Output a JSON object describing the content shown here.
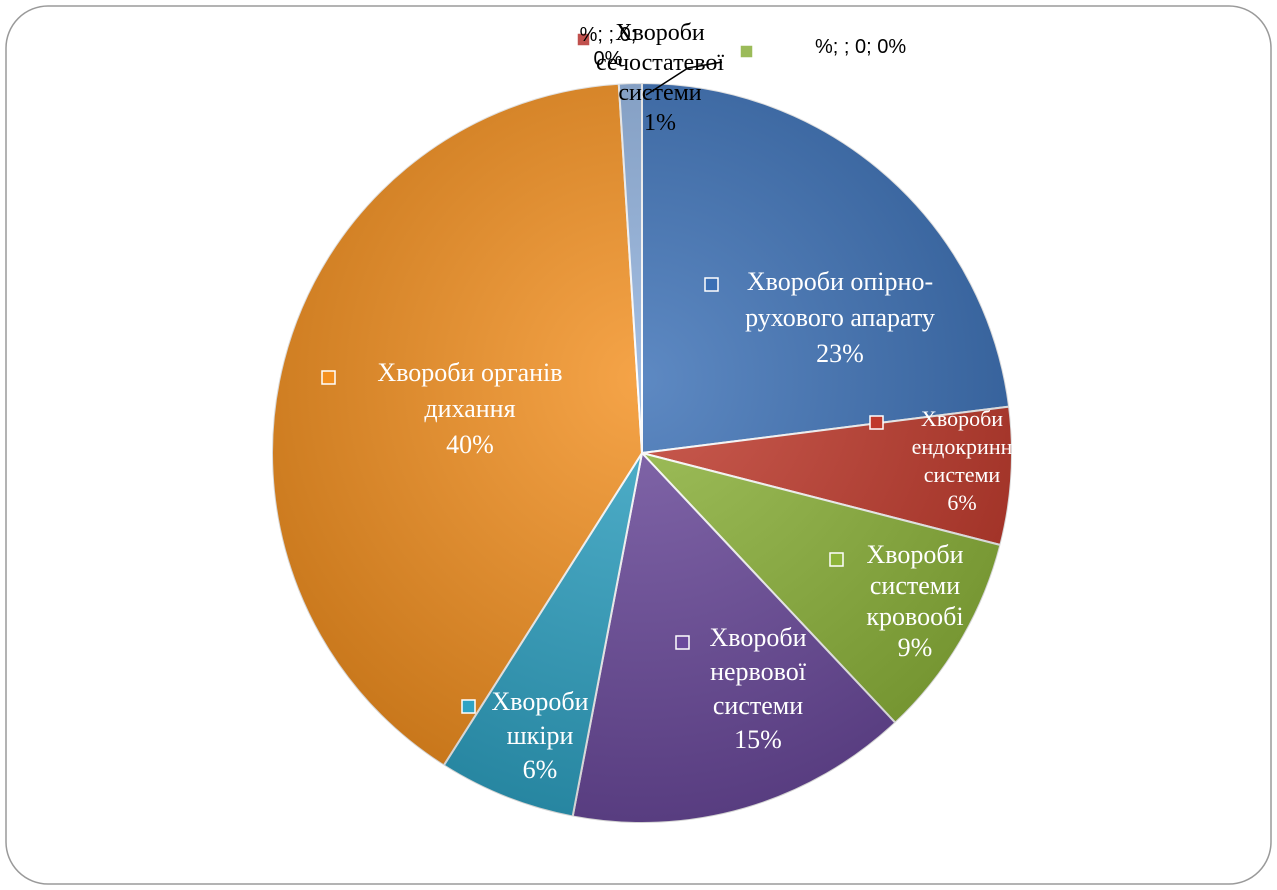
{
  "chart_data": {
    "type": "pie",
    "title": "",
    "slices": [
      {
        "name": "Хвороби опірно-рухового апарату",
        "value": 23,
        "label_lines": [
          "Хвороби опірно-",
          "рухового апарату",
          "23%"
        ],
        "color": "#3a6fb5"
      },
      {
        "name": "Хвороби ендокринної системи",
        "value": 6,
        "label_lines": [
          "Хвороби",
          "ендокринн",
          "системи",
          "6%"
        ],
        "color": "#c0392b"
      },
      {
        "name": "Хвороби системи кровообігу",
        "value": 9,
        "label_lines": [
          "Хвороби",
          "системи",
          "кровообі",
          "9%"
        ],
        "color": "#8db43a"
      },
      {
        "name": "Хвороби нервової системи",
        "value": 15,
        "label_lines": [
          "Хвороби",
          "нервової",
          "системи",
          "15%"
        ],
        "color": "#6b4a9c"
      },
      {
        "name": "Хвороби шкіри",
        "value": 6,
        "label_lines": [
          "Хвороби",
          "шкіри",
          "6%"
        ],
        "color": "#2fa3c4"
      },
      {
        "name": "Хвороби органів дихання",
        "value": 40,
        "label_lines": [
          "Хвороби органів",
          "дихання",
          "40%"
        ],
        "color": "#f39020"
      },
      {
        "name": "Хвороби сечостатевої системи",
        "value": 1,
        "label_lines": [
          "Хвороби",
          "сечостатевої",
          "системи",
          "1%"
        ],
        "color": "#8fb0dc"
      },
      {
        "name": "",
        "value": 0,
        "label_lines": [
          "%; ; 0;",
          "0%"
        ],
        "color": "#c0504d"
      },
      {
        "name": "",
        "value": 0,
        "label_lines": [
          "%; ; 0; 0%"
        ],
        "color": "#9bbb59"
      }
    ]
  }
}
